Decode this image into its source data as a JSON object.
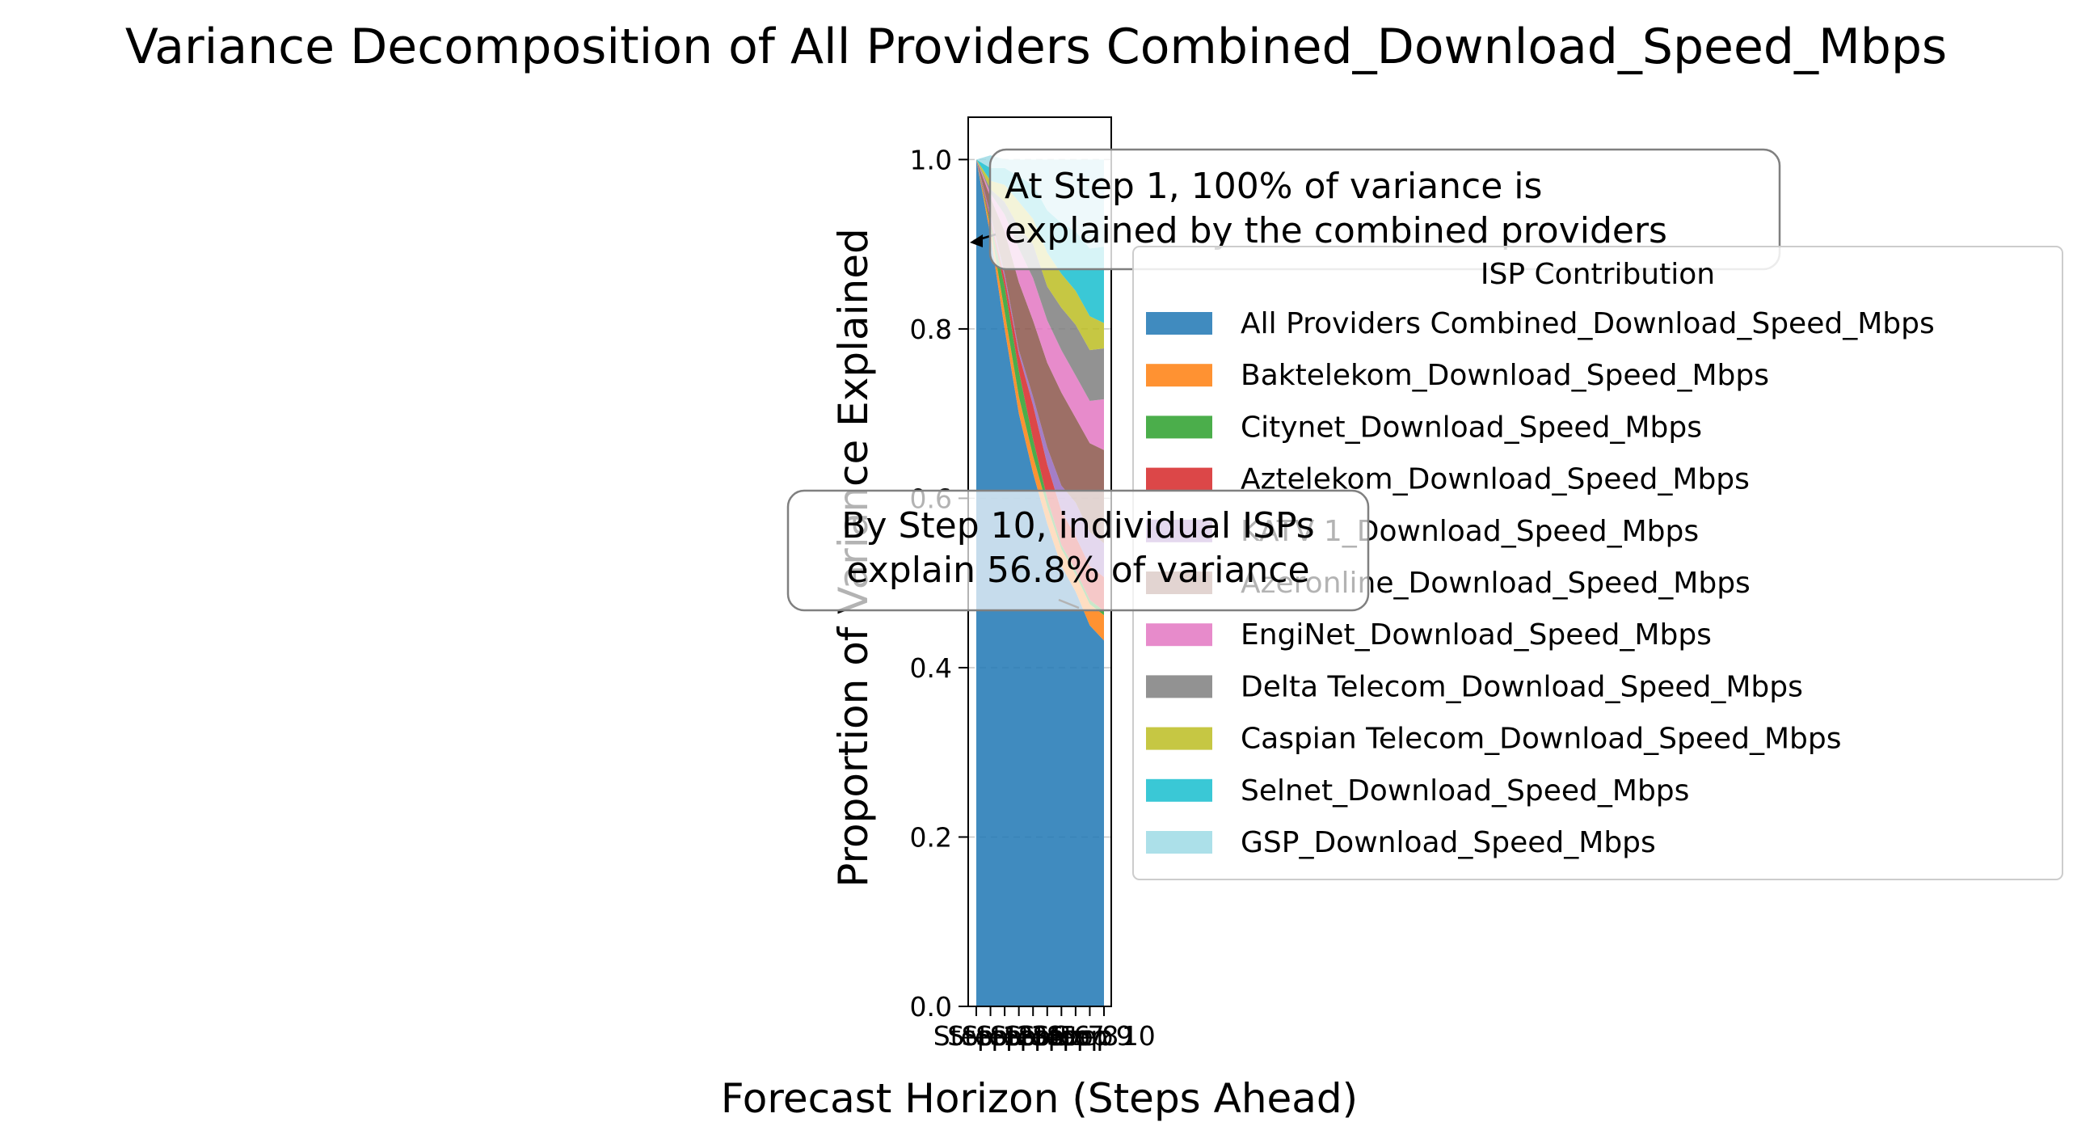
{
  "chart_data": {
    "type": "area",
    "stacked": true,
    "title": "Variance Decomposition of All Providers Combined_Download_Speed_Mbps",
    "xlabel": "Forecast Horizon (Steps Ahead)",
    "ylabel": "Proportion of Variance Explained",
    "ylim": [
      0,
      1.05
    ],
    "yticks": [
      "0.0",
      "0.2",
      "0.4",
      "0.6",
      "0.8",
      "1.0"
    ],
    "x": [
      1,
      2,
      3,
      4,
      5,
      6,
      7,
      8,
      9,
      10
    ],
    "xtick_labels": [
      "Step 1",
      "Step 2",
      "Step 3",
      "Step 4",
      "Step 5",
      "Step 6",
      "Step 7",
      "Step 8",
      "Step 9",
      "Step 10"
    ],
    "grid": "y-dashed",
    "legend": {
      "title": "ISP Contribution",
      "placement": "right"
    },
    "series": [
      {
        "name": "All Providers Combined_Download_Speed_Mbps",
        "color": "#1f77b4",
        "values": [
          1.0,
          0.91,
          0.8,
          0.7,
          0.63,
          0.57,
          0.52,
          0.49,
          0.45,
          0.432
        ]
      },
      {
        "name": "Baktelekom_Download_Speed_Mbps",
        "color": "#ff7f0e",
        "values": [
          0.0,
          0.01,
          0.02,
          0.02,
          0.02,
          0.02,
          0.02,
          0.02,
          0.025,
          0.03
        ]
      },
      {
        "name": "Citynet_Download_Speed_Mbps",
        "color": "#2ca02c",
        "values": [
          0.0,
          0.005,
          0.03,
          0.03,
          0.02,
          0.01,
          0.005,
          0.005,
          0.005,
          0.005
        ]
      },
      {
        "name": "Aztelekom_Download_Speed_Mbps",
        "color": "#d62728",
        "values": [
          0.0,
          0.005,
          0.01,
          0.02,
          0.04,
          0.04,
          0.04,
          0.04,
          0.04,
          0.04
        ]
      },
      {
        "name": "KATV 1_Download_Speed_Mbps",
        "color": "#9467bd",
        "values": [
          0.0,
          0.005,
          0.005,
          0.005,
          0.01,
          0.02,
          0.03,
          0.04,
          0.04,
          0.04
        ]
      },
      {
        "name": "Azeronline_Download_Speed_Mbps",
        "color": "#8c564b",
        "values": [
          0.0,
          0.02,
          0.05,
          0.08,
          0.09,
          0.1,
          0.11,
          0.1,
          0.105,
          0.11
        ]
      },
      {
        "name": "EngiNet_Download_Speed_Mbps",
        "color": "#e377c2",
        "values": [
          0.0,
          0.005,
          0.02,
          0.04,
          0.05,
          0.05,
          0.05,
          0.05,
          0.05,
          0.06
        ]
      },
      {
        "name": "Delta Telecom_Download_Speed_Mbps",
        "color": "#7f7f7f",
        "values": [
          0.0,
          0.005,
          0.015,
          0.025,
          0.04,
          0.04,
          0.05,
          0.06,
          0.06,
          0.06
        ]
      },
      {
        "name": "Caspian Telecom_Download_Speed_Mbps",
        "color": "#bcbd22",
        "values": [
          0.0,
          0.01,
          0.02,
          0.03,
          0.03,
          0.04,
          0.04,
          0.04,
          0.04,
          0.03
        ]
      },
      {
        "name": "Selnet_Download_Speed_Mbps",
        "color": "#17becf",
        "values": [
          0.0,
          0.015,
          0.02,
          0.03,
          0.04,
          0.05,
          0.06,
          0.07,
          0.08,
          0.09
        ]
      },
      {
        "name": "GSP_Download_Speed_Mbps",
        "color": "#9edae5",
        "values": [
          0.0,
          0.015,
          0.01,
          0.02,
          0.03,
          0.06,
          0.075,
          0.085,
          0.105,
          0.103
        ]
      }
    ],
    "annotations": [
      {
        "lines": [
          "At Step 1, 100% of variance is",
          "explained by the combined providers"
        ],
        "x": 1,
        "y": 1.0
      },
      {
        "lines": [
          "By Step 10, individual ISPs",
          "explain 56.8% of variance"
        ],
        "x": 10,
        "y": 0.432
      }
    ]
  }
}
